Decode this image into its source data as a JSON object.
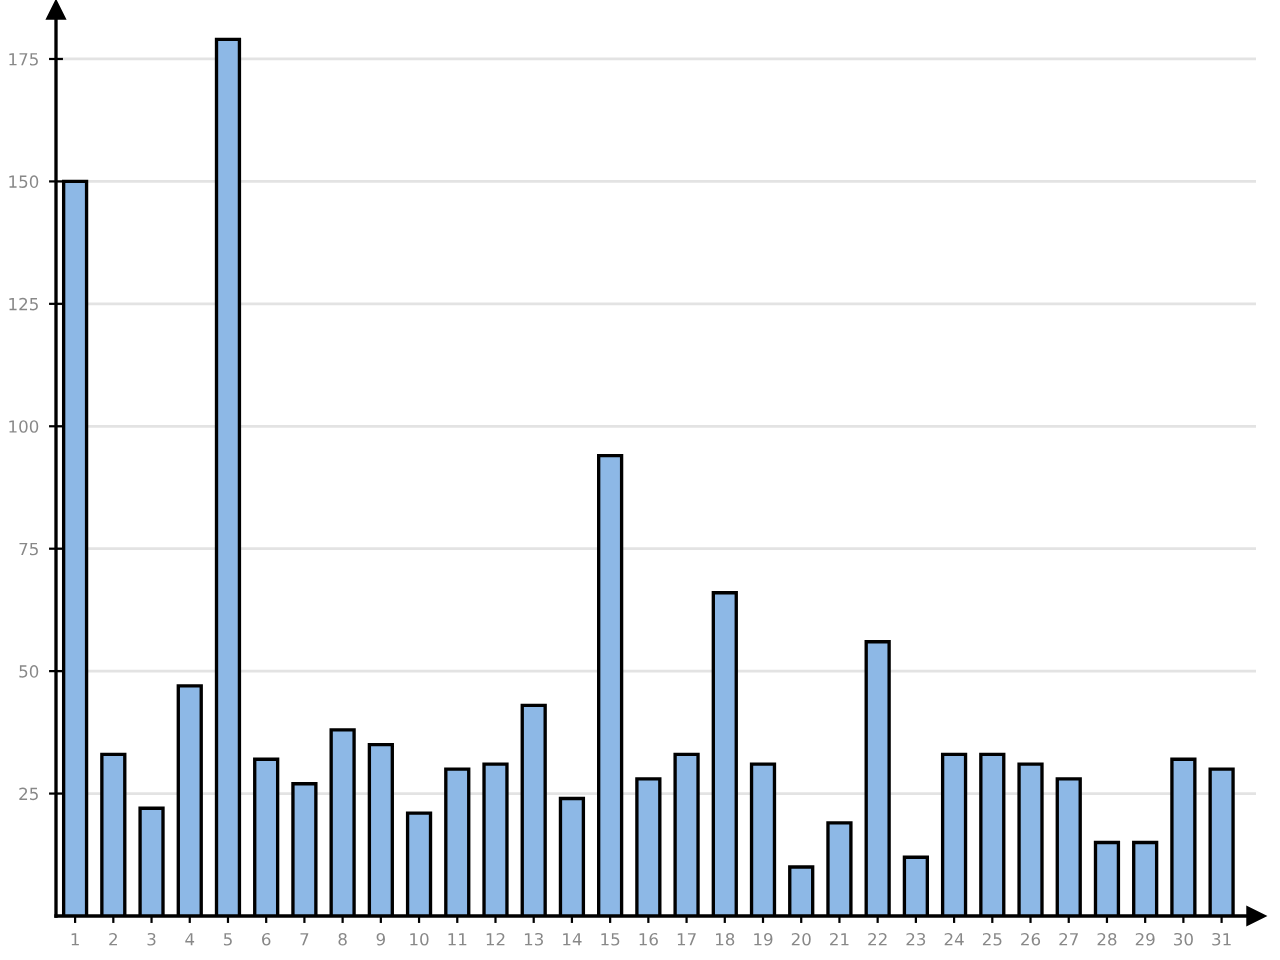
{
  "chart_data": {
    "type": "bar",
    "categories": [
      "1",
      "2",
      "3",
      "4",
      "5",
      "6",
      "7",
      "8",
      "9",
      "10",
      "11",
      "12",
      "13",
      "14",
      "15",
      "16",
      "17",
      "18",
      "19",
      "20",
      "21",
      "22",
      "23",
      "24",
      "25",
      "26",
      "27",
      "28",
      "29",
      "30",
      "31"
    ],
    "values": [
      150,
      33,
      22,
      47,
      179,
      32,
      27,
      38,
      35,
      21,
      30,
      31,
      43,
      24,
      94,
      28,
      33,
      66,
      31,
      10,
      19,
      56,
      12,
      33,
      33,
      31,
      28,
      15,
      15,
      32,
      30
    ],
    "color": "#8db8e6",
    "ylim": [
      0,
      185
    ],
    "yticks": [
      25,
      50,
      75,
      100,
      125,
      150,
      175
    ],
    "grid": "y"
  }
}
